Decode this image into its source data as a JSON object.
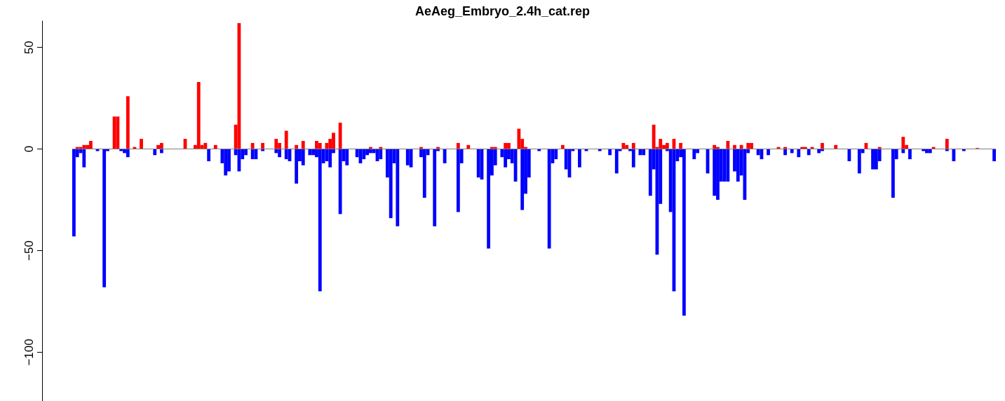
{
  "chart_data": {
    "type": "bar",
    "title": "AeAeg_Embryo_2.4h_cat.rep",
    "stacked": true,
    "tick_labels": "y",
    "ylim": [
      -124,
      63
    ],
    "yticks": [
      -100,
      -50,
      0,
      50
    ],
    "ref_lines": [
      {
        "axis": "y",
        "value": 0,
        "color": "#808080"
      }
    ],
    "categories": [
      null,
      null,
      null,
      null,
      null,
      null,
      null,
      null,
      null,
      null,
      null,
      null,
      null,
      null,
      null,
      null,
      null,
      null,
      null,
      null,
      null,
      null,
      null,
      null,
      null,
      null,
      null,
      null,
      null,
      null,
      null,
      null,
      null,
      null,
      null,
      null,
      null,
      null,
      null,
      null,
      null,
      null,
      null,
      null,
      null,
      null,
      null,
      null,
      null,
      null,
      null,
      null,
      null,
      null,
      null,
      null,
      null,
      null,
      null,
      null,
      null,
      null,
      null,
      null,
      null,
      null,
      null,
      null,
      null,
      null,
      null,
      null,
      null,
      null,
      null,
      null,
      null,
      null,
      null,
      null,
      null,
      null,
      null,
      null,
      null,
      null,
      null,
      null,
      null,
      null,
      null,
      null,
      null,
      null,
      null,
      null,
      null,
      null,
      null,
      null,
      null,
      null,
      null,
      null,
      null,
      null,
      null,
      null,
      null,
      null,
      null,
      null,
      null,
      null,
      null,
      null,
      null,
      null,
      null,
      null,
      null,
      null,
      null,
      null,
      null,
      null,
      null,
      null,
      null,
      null,
      null,
      null,
      null,
      null,
      null,
      null,
      null,
      null,
      null,
      null,
      null,
      null,
      null,
      null,
      null,
      null,
      null,
      null,
      null,
      null,
      null,
      null,
      null,
      null,
      null,
      null,
      null,
      null,
      null,
      null,
      null,
      null,
      null,
      null,
      null,
      null,
      null,
      null,
      null,
      null,
      null,
      null,
      null,
      null,
      null,
      null,
      null,
      null,
      null,
      null,
      null,
      null,
      null,
      null,
      null,
      null,
      null,
      null,
      null,
      null,
      null,
      null,
      null,
      null,
      null,
      null,
      null,
      null,
      null,
      null,
      null,
      null,
      null,
      null,
      null,
      null,
      null,
      null,
      null,
      null,
      null,
      null,
      null,
      null,
      null,
      null,
      null,
      null,
      null,
      null,
      null,
      null,
      null,
      null,
      null,
      null,
      null,
      null,
      null,
      null,
      null,
      null,
      null,
      null,
      null,
      null,
      null,
      null,
      null,
      null,
      null,
      null,
      null,
      null,
      null,
      null,
      null,
      null,
      null,
      null,
      null,
      null,
      null,
      null,
      null,
      null,
      null,
      null,
      null,
      null,
      null,
      null,
      null,
      null,
      null,
      null,
      null,
      null,
      null,
      null,
      null,
      null,
      null,
      null
    ],
    "series": [
      {
        "color": "#ff0000",
        "values": [
          0,
          1,
          1,
          2,
          2,
          4,
          0,
          0,
          0,
          0,
          0,
          0,
          16,
          16,
          0,
          0,
          26,
          0,
          1,
          0,
          5,
          0,
          0,
          0,
          0,
          2,
          3,
          0,
          0,
          0,
          0,
          0,
          0,
          5,
          0,
          0,
          2,
          33,
          2,
          3,
          0,
          0,
          2,
          0,
          0,
          0,
          0,
          0,
          12,
          62,
          0,
          0,
          0,
          3,
          0,
          0,
          3,
          0,
          0,
          0,
          5,
          3,
          0,
          9,
          0,
          0,
          2,
          0,
          4,
          0,
          0,
          0,
          4,
          3,
          0,
          3,
          5,
          8,
          0,
          13,
          0,
          0,
          0,
          0,
          0,
          0,
          0,
          0,
          1,
          0,
          0,
          1,
          0,
          0,
          0,
          0,
          0,
          0,
          0,
          0,
          0,
          0,
          0,
          1,
          0,
          0,
          0,
          0,
          1,
          0,
          0,
          0,
          0,
          0,
          3,
          0,
          0,
          2,
          0,
          0,
          0,
          0,
          0,
          0,
          1,
          1,
          0,
          0,
          3,
          3,
          0,
          0,
          10,
          5,
          1,
          0,
          0,
          0,
          0,
          0,
          0,
          0,
          0,
          0,
          0,
          2,
          0,
          0,
          0,
          0,
          0,
          0,
          0,
          0,
          0,
          0,
          0,
          0,
          0,
          0,
          0,
          0,
          0,
          3,
          2,
          0,
          3,
          0,
          0,
          0,
          0,
          0,
          12,
          1,
          5,
          2,
          3,
          0,
          5,
          0,
          3,
          0,
          0,
          0,
          0,
          0,
          0,
          0,
          0,
          0,
          2,
          1,
          0,
          0,
          4,
          0,
          2,
          0,
          2,
          0,
          3,
          3,
          0,
          0,
          0,
          0,
          0,
          0,
          0,
          1,
          0,
          1,
          0,
          0,
          0,
          0,
          1,
          1,
          0,
          1,
          0,
          0,
          3,
          0,
          0,
          0,
          2,
          0,
          0,
          0,
          0,
          0,
          0,
          0,
          0,
          3,
          0,
          0,
          0,
          1,
          0,
          0,
          0,
          0,
          0,
          0,
          6,
          2,
          0,
          0,
          0,
          0,
          0,
          0,
          0,
          1,
          0,
          0,
          0,
          5,
          0,
          0,
          0,
          0,
          0,
          0,
          0,
          0,
          0.5,
          0,
          0,
          0,
          0,
          0
        ]
      },
      {
        "color": "#0000ff",
        "values": [
          -43,
          -4,
          -2,
          -9,
          0,
          0,
          0,
          -1,
          0,
          -68,
          -1,
          0,
          0,
          0,
          -1,
          -2,
          -4,
          0,
          0,
          0,
          0,
          0,
          0,
          0,
          -3,
          0,
          -2,
          0,
          0,
          0,
          0,
          0,
          0,
          0,
          0,
          0,
          0,
          0,
          0,
          0,
          -6,
          0,
          0,
          0,
          -7,
          -13,
          -11,
          null,
          -3,
          -11,
          -5,
          -3,
          0,
          -5,
          -5,
          0,
          -1,
          0,
          0,
          0,
          -2,
          -4,
          0,
          -5,
          -6,
          0,
          -17,
          -6,
          -8,
          0,
          -3,
          -3,
          -4,
          -70,
          -7,
          -6,
          -9,
          -2,
          null,
          -32,
          -6,
          -8,
          0,
          0,
          -4,
          -7,
          -5,
          -3,
          -2,
          -2,
          -6,
          -5,
          0,
          -14,
          -34,
          -7,
          -38,
          0,
          0,
          -8,
          -9,
          0,
          0,
          -4,
          -24,
          -3,
          0,
          -38,
          -1,
          0,
          -7,
          0,
          0,
          0,
          -31,
          -7,
          0,
          0,
          0,
          0,
          -14,
          -15,
          0,
          -49,
          -13,
          -8,
          0,
          -4,
          -9,
          -5,
          -7,
          -16,
          0,
          -30,
          -22,
          -14,
          0,
          0,
          -1,
          0,
          0,
          -49,
          -7,
          -5,
          0,
          0,
          -10,
          -14,
          -1,
          0,
          -9,
          0,
          -1,
          0,
          0,
          0,
          -1,
          0,
          0,
          -3,
          0,
          -12,
          -1,
          0,
          0,
          -1,
          -9,
          0,
          -3,
          -3,
          0,
          -23,
          -10,
          -52,
          -27,
          0,
          -1,
          -31,
          -70,
          -6,
          -4,
          -82,
          0,
          0,
          -5,
          -2,
          0,
          0,
          -12,
          0,
          -23,
          -25,
          -16,
          -16,
          -16,
          0,
          -11,
          -16,
          -13,
          -25,
          -2,
          0,
          0,
          -3,
          -5,
          0,
          -3,
          0,
          0,
          0,
          0,
          -3,
          0,
          -2,
          0,
          -4,
          0,
          0,
          -3,
          0,
          0,
          -2,
          -1,
          0,
          0,
          0,
          0,
          0,
          0,
          0,
          -6,
          0,
          0,
          -12,
          -2,
          0,
          0,
          -10,
          -10,
          -6,
          0,
          0,
          0,
          -24,
          -5,
          0,
          -2,
          0,
          -5,
          0,
          0,
          0,
          -1,
          -2,
          -2,
          0,
          0,
          0,
          0,
          -1,
          0,
          -6,
          0,
          0,
          -1,
          0,
          0,
          0,
          0,
          0,
          0,
          0,
          0,
          -6
        ]
      }
    ]
  }
}
